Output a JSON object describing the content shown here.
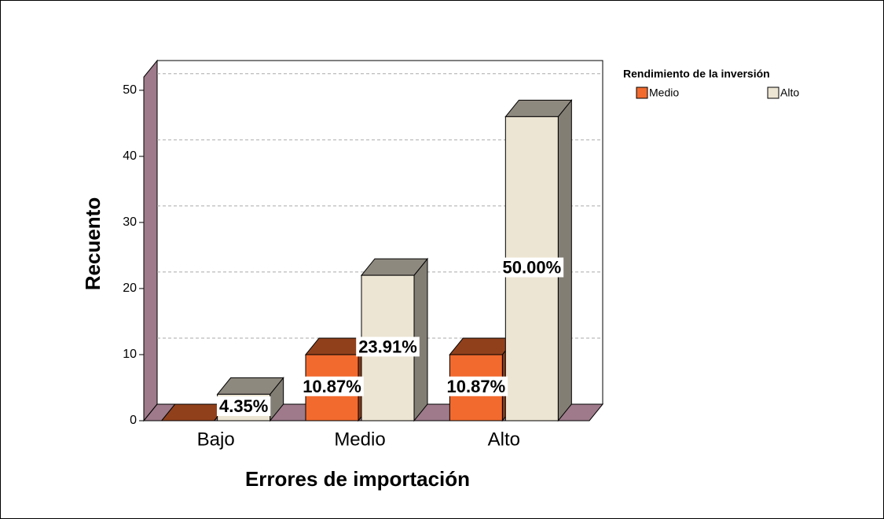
{
  "chart_data": {
    "type": "bar3d",
    "categories": [
      "Bajo",
      "Medio",
      "Alto"
    ],
    "x_label": "Errores de importación",
    "y_label": "Recuento",
    "legend_title": "Rendimiento de la inversión",
    "series": [
      {
        "name": "Medio",
        "color": "#f26a2e",
        "values": [
          0,
          10,
          10
        ],
        "value_labels": [
          null,
          "10.87%",
          "10.87%"
        ]
      },
      {
        "name": "Alto",
        "color": "#ede5d3",
        "values": [
          4,
          22,
          46
        ],
        "value_labels": [
          "4.35%",
          "23.91%",
          "50.00%"
        ]
      }
    ],
    "ylim": [
      0,
      52
    ],
    "yticks": [
      0,
      10,
      20,
      30,
      40,
      50
    ],
    "grid": true,
    "legend": "upper right"
  }
}
